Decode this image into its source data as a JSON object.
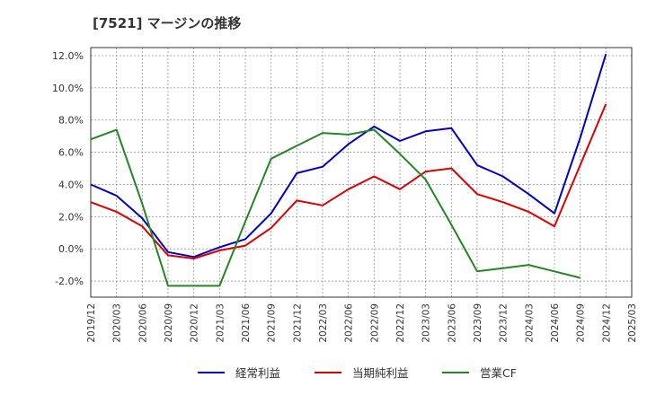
{
  "chart_data": {
    "type": "line",
    "title": "[7521]  マージンの推移",
    "x_categories": [
      "2019/12",
      "2020/03",
      "2020/06",
      "2020/09",
      "2020/12",
      "2021/03",
      "2021/06",
      "2021/09",
      "2021/12",
      "2022/03",
      "2022/06",
      "2022/09",
      "2022/12",
      "2023/03",
      "2023/06",
      "2023/09",
      "2023/12",
      "2024/03",
      "2024/06",
      "2024/09",
      "2024/12",
      "2025/03"
    ],
    "y_ticks": [
      "12.0%",
      "10.0%",
      "8.0%",
      "6.0%",
      "4.0%",
      "2.0%",
      "0.0%",
      "-2.0%"
    ],
    "y_tick_values": [
      12,
      10,
      8,
      6,
      4,
      2,
      0,
      -2
    ],
    "ylim": [
      -3,
      12.5
    ],
    "grid": true,
    "legend_position": "bottom",
    "series": [
      {
        "name": "経常利益",
        "color": "#0000cc",
        "values": [
          4.0,
          3.3,
          1.9,
          -0.2,
          -0.5,
          0.1,
          0.6,
          2.2,
          4.7,
          5.1,
          6.5,
          7.6,
          6.7,
          7.3,
          7.5,
          5.2,
          4.5,
          3.4,
          2.2,
          6.9,
          12.1,
          null
        ]
      },
      {
        "name": "当期純利益",
        "color": "#dd0000",
        "values": [
          2.9,
          2.3,
          1.4,
          -0.4,
          -0.6,
          -0.1,
          0.2,
          1.3,
          3.0,
          2.7,
          3.7,
          4.5,
          3.7,
          4.8,
          5.0,
          3.4,
          2.9,
          2.3,
          1.4,
          5.2,
          9.0,
          null
        ]
      },
      {
        "name": "営業CF",
        "color": "#228822",
        "values": [
          6.8,
          7.4,
          2.8,
          -2.3,
          -2.3,
          -2.3,
          1.7,
          5.6,
          6.4,
          7.2,
          7.1,
          7.4,
          5.9,
          4.3,
          1.5,
          -1.4,
          -1.2,
          -1.0,
          -1.4,
          -1.8,
          null,
          null
        ]
      }
    ]
  }
}
